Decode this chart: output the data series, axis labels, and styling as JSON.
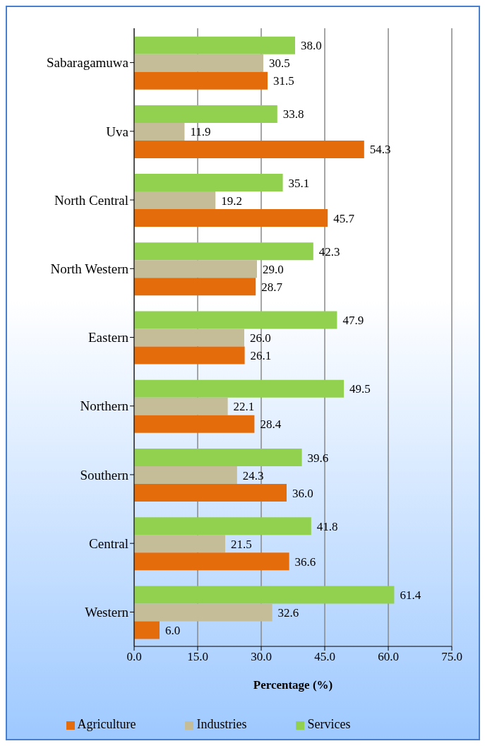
{
  "chart_data": {
    "type": "bar",
    "orientation": "horizontal",
    "xlabel": "Percentage (%)",
    "categories": [
      "Sabaragamuwa",
      "Uva",
      "North Central",
      "North Western",
      "Eastern",
      "Northern",
      "Southern",
      "Central",
      "Western"
    ],
    "series": [
      {
        "name": "Services",
        "color": "#92d050",
        "values": [
          38.0,
          33.8,
          35.1,
          42.3,
          47.9,
          49.5,
          39.6,
          41.8,
          61.4
        ],
        "value_labels": [
          "38.0",
          "33.8",
          "35.1",
          "42.3",
          "47.9",
          "49.5",
          "39.6",
          "41.8",
          "61.4"
        ]
      },
      {
        "name": "Industries",
        "color": "#c4bd97",
        "values": [
          30.5,
          11.9,
          19.2,
          29.0,
          26.0,
          22.1,
          24.3,
          21.5,
          32.6
        ],
        "value_labels": [
          "30.5",
          "11.9",
          "19.2",
          "29.0",
          "26.0",
          "22.1",
          "24.3",
          "21.5",
          "32.6"
        ]
      },
      {
        "name": "Agriculture",
        "color": "#e46c0a",
        "values": [
          31.5,
          54.3,
          45.7,
          28.7,
          26.1,
          28.4,
          36.0,
          36.6,
          6.0
        ],
        "value_labels": [
          "31.5",
          "54.3",
          "45.7",
          "28.7",
          "26.1",
          "28.4",
          "36.0",
          "36.6",
          "6.0"
        ]
      }
    ],
    "xlim": [
      0,
      75
    ],
    "xticks": [
      {
        "value": 0,
        "label": "0.0"
      },
      {
        "value": 15,
        "label": "15.0"
      },
      {
        "value": 30,
        "label": "30.0"
      },
      {
        "value": 45,
        "label": "45.0"
      },
      {
        "value": 60,
        "label": "60.0"
      },
      {
        "value": 75,
        "label": "75.0"
      }
    ],
    "grid": "x",
    "legend": "bottom"
  }
}
